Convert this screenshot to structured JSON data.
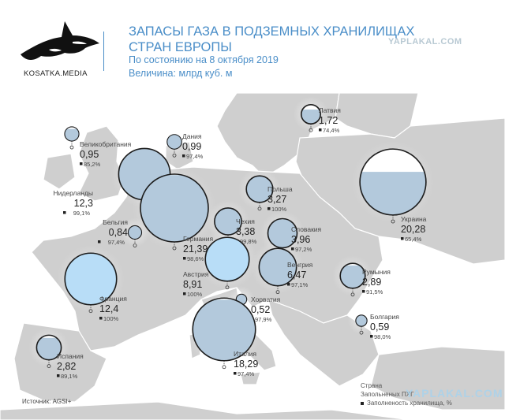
{
  "header": {
    "logo_text": "KOSATKA.MEDIA",
    "title_line1": "ЗАПАСЫ ГАЗА В ПОДЗЕМНЫХ ХРАНИЛИЩАХ",
    "title_line2": "СТРАН ЕВРОПЫ",
    "date_line": "По состоянию на  8 октября 2019",
    "unit_line": "Величина: млрд куб. м"
  },
  "watermark_top": "YAPLAKAL.COM",
  "watermark_bottom": "YAPLAKAL.COM",
  "legend": {
    "line1": "Страна",
    "line2": "Запольненых ПХГ",
    "line3": "Заполненость хранилища, %"
  },
  "source": "Источник: AGSI+",
  "colors": {
    "title": "#4a8ec8",
    "bubble_fill": "#b3c9dc",
    "bubble_highlight": "#b8ddf7",
    "bubble_outline": "#1c1c1c",
    "land": "#cfcfcf",
    "sea": "#ffffff"
  },
  "chart_data": {
    "type": "bubble-map",
    "value_unit": "млрд куб. м",
    "percent_unit": "%",
    "countries": [
      {
        "name": "Великобритания",
        "value": "0,95",
        "volume": 0.95,
        "pct": "85,2%",
        "fill": 85.2
      },
      {
        "name": "Дания",
        "value": "0,99",
        "volume": 0.99,
        "pct": "97,4%",
        "fill": 97.4
      },
      {
        "name": "Латвия",
        "value": "1,72",
        "volume": 1.72,
        "pct": "74,4%",
        "fill": 74.4
      },
      {
        "name": "Нидерланды",
        "value": "12,3",
        "volume": 12.3,
        "pct": "99,1%",
        "fill": 99.1
      },
      {
        "name": "Бельгия",
        "value": "0,84",
        "volume": 0.84,
        "pct": "97,4%",
        "fill": 97.4
      },
      {
        "name": "Германия",
        "value": "21,39",
        "volume": 21.39,
        "pct": "98,6%",
        "fill": 98.6
      },
      {
        "name": "Польша",
        "value": "3,27",
        "volume": 3.27,
        "pct": "100%",
        "fill": 100
      },
      {
        "name": "Чехия",
        "value": "3,38",
        "volume": 3.38,
        "pct": "99,8%",
        "fill": 99.8
      },
      {
        "name": "Словакия",
        "value": "3,96",
        "volume": 3.96,
        "pct": "97,2%",
        "fill": 97.2
      },
      {
        "name": "Украина",
        "value": "20,28",
        "volume": 20.28,
        "pct": "65,4%",
        "fill": 65.4
      },
      {
        "name": "Австрия",
        "value": "8,91",
        "volume": 8.91,
        "pct": "100%",
        "fill": 100
      },
      {
        "name": "Венгрия",
        "value": "6,47",
        "volume": 6.47,
        "pct": "97,1%",
        "fill": 97.1
      },
      {
        "name": "Франция",
        "value": "12,4",
        "volume": 12.4,
        "pct": "100%",
        "fill": 100
      },
      {
        "name": "Хорватия",
        "value": "0,52",
        "volume": 0.52,
        "pct": "97,9%",
        "fill": 97.9
      },
      {
        "name": "Румыния",
        "value": "2,89",
        "volume": 2.89,
        "pct": "91,5%",
        "fill": 91.5
      },
      {
        "name": "Болгария",
        "value": "0,59",
        "volume": 0.59,
        "pct": "98,0%",
        "fill": 98.0
      },
      {
        "name": "Италия",
        "value": "18,29",
        "volume": 18.29,
        "pct": "97,4%",
        "fill": 97.4
      },
      {
        "name": "Испания",
        "value": "2,82",
        "volume": 2.82,
        "pct": "89,1%",
        "fill": 89.1
      }
    ]
  }
}
